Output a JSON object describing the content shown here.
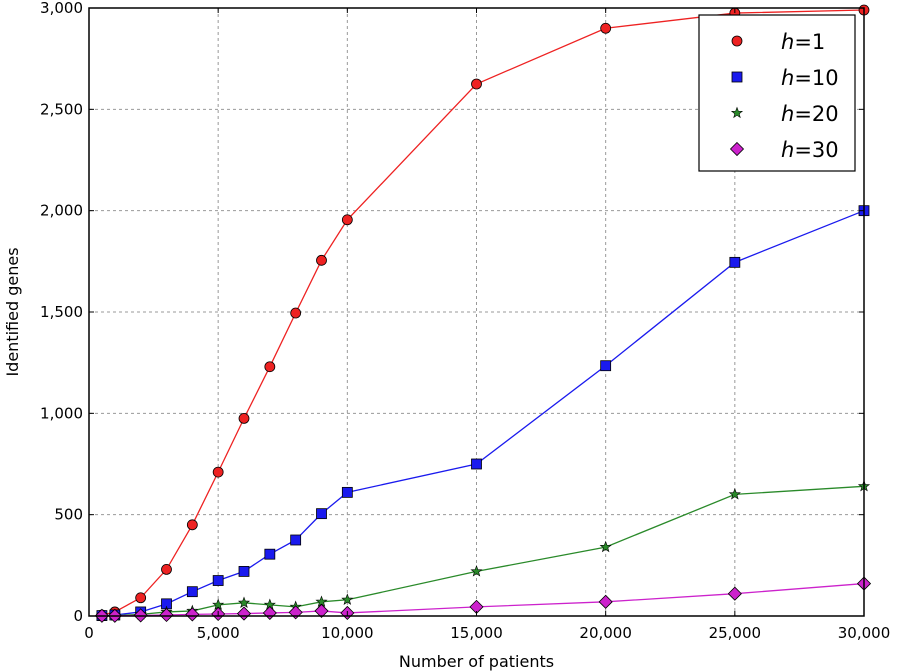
{
  "chart_data": {
    "type": "line",
    "title": "",
    "xlabel": "Number of patients",
    "ylabel": "Identified genes",
    "xlim": [
      0,
      30000
    ],
    "ylim": [
      0,
      3000
    ],
    "xticks": [
      0,
      5000,
      10000,
      15000,
      20000,
      25000,
      30000
    ],
    "xtick_labels": [
      "0",
      "5,000",
      "10,000",
      "15,000",
      "20,000",
      "25,000",
      "30,000"
    ],
    "yticks": [
      0,
      500,
      1000,
      1500,
      2000,
      2500,
      3000
    ],
    "ytick_labels": [
      "0",
      "500",
      "1,000",
      "1,500",
      "2,000",
      "2,500",
      "3,000"
    ],
    "grid": true,
    "legend_position": "top-right",
    "x": [
      500,
      1000,
      2000,
      3000,
      4000,
      5000,
      6000,
      7000,
      8000,
      9000,
      10000,
      15000,
      20000,
      25000,
      30000
    ],
    "series": [
      {
        "name": "h=1",
        "name_italic": "h",
        "name_rest": "=1",
        "color": "#ee2222",
        "marker": "circle",
        "values": [
          5,
          20,
          90,
          230,
          450,
          710,
          975,
          1230,
          1495,
          1755,
          1955,
          2625,
          2900,
          2975,
          2990
        ]
      },
      {
        "name": "h=10",
        "name_italic": "h",
        "name_rest": "=10",
        "color": "#1a1aee",
        "marker": "square",
        "values": [
          2,
          5,
          20,
          60,
          120,
          175,
          220,
          305,
          375,
          505,
          610,
          750,
          1235,
          1745,
          2000
        ]
      },
      {
        "name": "h=20",
        "name_italic": "h",
        "name_rest": "=20",
        "color": "#2a8a2a",
        "marker": "star",
        "values": [
          1,
          2,
          8,
          20,
          25,
          55,
          65,
          55,
          45,
          70,
          80,
          220,
          340,
          600,
          640
        ]
      },
      {
        "name": "h=30",
        "name_italic": "h",
        "name_rest": "=30",
        "color": "#cc22cc",
        "marker": "diamond",
        "values": [
          1,
          1,
          3,
          5,
          8,
          10,
          12,
          15,
          18,
          25,
          15,
          45,
          70,
          110,
          160
        ]
      }
    ]
  }
}
